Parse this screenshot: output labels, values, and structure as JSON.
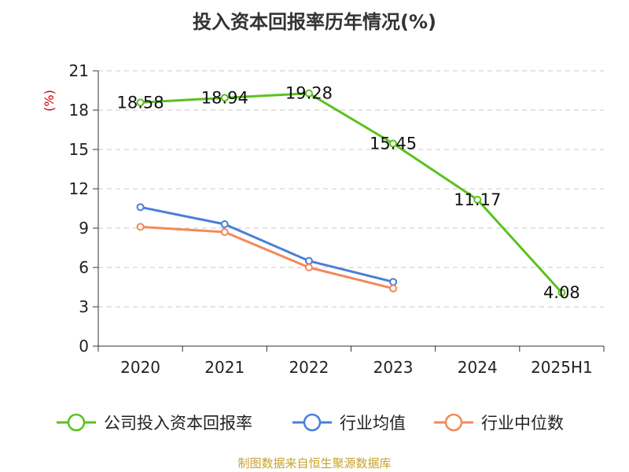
{
  "chart_data": {
    "type": "line",
    "title": "投入资本回报率历年情况(%)",
    "unit_label": "(%)",
    "categories": [
      "2020",
      "2021",
      "2022",
      "2023",
      "2024",
      "2025H1"
    ],
    "ylim": [
      0,
      21
    ],
    "yticks": [
      0,
      3,
      6,
      9,
      12,
      15,
      18,
      21
    ],
    "grid": true,
    "legend_position": "bottom",
    "series": [
      {
        "name": "公司投入资本回报率",
        "color": "#5ac21e",
        "values": [
          18.58,
          18.94,
          19.28,
          15.45,
          11.17,
          4.08
        ],
        "labels": [
          "18.58",
          "18.94",
          "19.28",
          "15.45",
          "11.17",
          "4.08"
        ]
      },
      {
        "name": "行业均值",
        "color": "#4a7fd6",
        "values": [
          10.6,
          9.3,
          6.5,
          4.9,
          null,
          null
        ]
      },
      {
        "name": "行业中位数",
        "color": "#f28a5a",
        "values": [
          9.1,
          8.7,
          6.0,
          4.4,
          null,
          null
        ]
      }
    ]
  },
  "footer": "制图数据来自恒生聚源数据库"
}
